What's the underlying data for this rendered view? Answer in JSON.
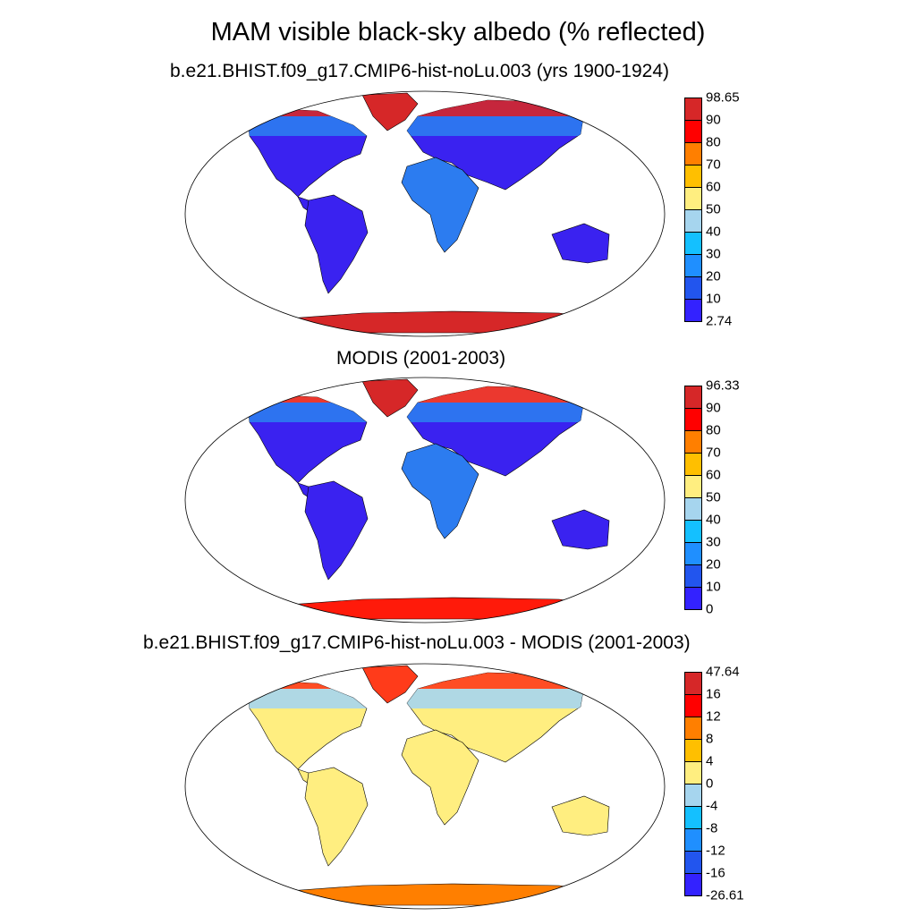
{
  "title": "MAM visible black-sky albedo (% reflected)",
  "panels": [
    {
      "title": "b.e21.BHIST.f09_g17.CMIP6-hist-noLu.003 (yrs 1900-1924)",
      "colorbar": {
        "labels": [
          "98.65",
          "90",
          "80",
          "70",
          "60",
          "50",
          "40",
          "30",
          "20",
          "10",
          "2.74"
        ],
        "colors": [
          "#d62728",
          "#ff0000",
          "#ff7f00",
          "#ffbf00",
          "#ffee80",
          "#a6d5ee",
          "#14c0ff",
          "#1f8fff",
          "#2255ee",
          "#3322ff"
        ]
      },
      "land": "#3a22f0",
      "ant": "#d62728",
      "greenland": "#d62728",
      "arctic_band": "#d62728",
      "boreal_band": "#2c7cf0",
      "africa": "#2c7cf0"
    },
    {
      "title": "MODIS (2001-2003)",
      "colorbar": {
        "labels": [
          "96.33",
          "90",
          "80",
          "70",
          "60",
          "50",
          "40",
          "30",
          "20",
          "10",
          "0"
        ],
        "colors": [
          "#d62728",
          "#ff0000",
          "#ff7f00",
          "#ffbf00",
          "#ffee80",
          "#a6d5ee",
          "#14c0ff",
          "#1f8fff",
          "#2255ee",
          "#3322ff"
        ]
      },
      "land": "#3a22f0",
      "ant": "#ff1a0a",
      "greenland": "#d62728",
      "arctic_band": "#ff3b1a",
      "boreal_band": "#2c7cf0",
      "africa": "#2c7cf0"
    },
    {
      "title": "b.e21.BHIST.f09_g17.CMIP6-hist-noLu.003 - MODIS (2001-2003)",
      "colorbar": {
        "labels": [
          "47.64",
          "16",
          "12",
          "8",
          "4",
          "0",
          "-4",
          "-8",
          "-12",
          "-16",
          "-26.61"
        ],
        "colors": [
          "#d62728",
          "#ff0000",
          "#ff7f00",
          "#ffbf00",
          "#ffee80",
          "#a6d5ee",
          "#14c0ff",
          "#1f8fff",
          "#2255ee",
          "#3322ff"
        ]
      },
      "land": "#ffee80",
      "ant": "#ff7f00",
      "greenland": "#ff3b1a",
      "arctic_band": "#ff3b1a",
      "boreal_band": "#a6d5ee",
      "africa": "#ffee80"
    }
  ]
}
